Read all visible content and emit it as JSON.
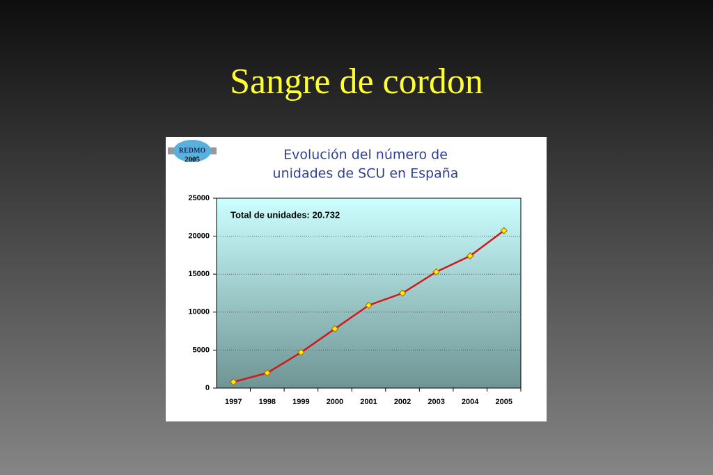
{
  "slide_title": "Sangre de cordon",
  "chart_data": {
    "type": "line",
    "title": [
      "Evolución del número de",
      "unidades de SCU en España"
    ],
    "logo": {
      "name": "REDMO",
      "year": "2005"
    },
    "annotations": [
      "Total de unidades: 20.732"
    ],
    "categories": [
      "1997",
      "1998",
      "1999",
      "2000",
      "2001",
      "2002",
      "2003",
      "2004",
      "2005"
    ],
    "values": [
      800,
      2000,
      4700,
      7800,
      10900,
      12500,
      15300,
      17400,
      20732
    ],
    "color": "#d01818",
    "marker_color": "#ffee00",
    "ylim": [
      0,
      25000
    ],
    "yticks": [
      0,
      5000,
      10000,
      15000,
      20000,
      25000
    ],
    "grid": true
  }
}
